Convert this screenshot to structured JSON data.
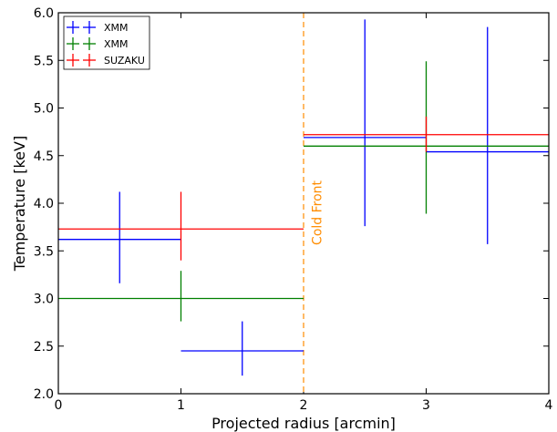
{
  "chart_data": {
    "type": "scatter",
    "title": "",
    "xlabel": "Projected radius [arcmin]",
    "ylabel": "Temperature [keV]",
    "xlim": [
      0,
      4
    ],
    "ylim": [
      2.0,
      6.0
    ],
    "xticks": [
      0,
      1,
      2,
      3,
      4
    ],
    "yticks": [
      2.0,
      2.5,
      3.0,
      3.5,
      4.0,
      4.5,
      5.0,
      5.5,
      6.0
    ],
    "xtick_labels": [
      "0",
      "1",
      "2",
      "3",
      "4"
    ],
    "ytick_labels": [
      "2.0",
      "2.5",
      "3.0",
      "3.5",
      "4.0",
      "4.5",
      "5.0",
      "5.5",
      "6.0"
    ],
    "grid": false,
    "legend_position": "top-left",
    "series": [
      {
        "name": "XMM",
        "color": "#0000ff",
        "points": [
          {
            "x": 0.5,
            "xerr": 0.5,
            "y": 3.62,
            "yerr_low": 0.46,
            "yerr_high": 0.5
          },
          {
            "x": 1.5,
            "xerr": 0.5,
            "y": 2.45,
            "yerr_low": 0.26,
            "yerr_high": 0.31
          },
          {
            "x": 2.5,
            "xerr": 0.5,
            "y": 4.69,
            "yerr_low": 0.93,
            "yerr_high": 1.24
          },
          {
            "x": 3.5,
            "xerr": 0.5,
            "y": 4.54,
            "yerr_low": 0.97,
            "yerr_high": 1.31
          }
        ]
      },
      {
        "name": "XMM",
        "color": "#008000",
        "points": [
          {
            "x": 1.0,
            "xerr": 1.0,
            "y": 3.0,
            "yerr_low": 0.24,
            "yerr_high": 0.29
          },
          {
            "x": 3.0,
            "xerr": 1.0,
            "y": 4.6,
            "yerr_low": 0.71,
            "yerr_high": 0.89
          }
        ]
      },
      {
        "name": "SUZAKU",
        "color": "#ff0000",
        "points": [
          {
            "x": 1.0,
            "xerr": 1.0,
            "y": 3.73,
            "yerr_low": 0.33,
            "yerr_high": 0.39
          },
          {
            "x": 3.0,
            "xerr": 1.0,
            "y": 4.72,
            "yerr_low": 0.18,
            "yerr_high": 0.19
          }
        ]
      }
    ],
    "annotations": [
      {
        "type": "vline",
        "x": 2.0,
        "color": "#ff8c00",
        "style": "dashed"
      },
      {
        "type": "text",
        "text": "Cold Front",
        "x": 2.1,
        "y": 3.9,
        "rotation": 90,
        "color": "#ff8c00"
      }
    ]
  }
}
